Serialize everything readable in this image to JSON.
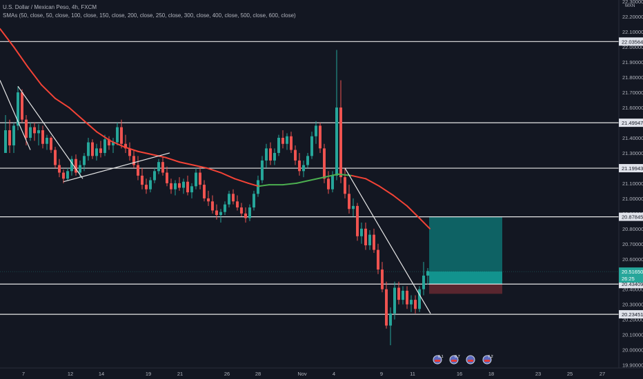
{
  "header": {
    "symbol_line": "U.S. Dollar / Mexican Peso, 4h, FXCM",
    "study_line": "SMAs (50, close, 50, close, 100, close, 150, close, 200, close, 250, close, 300, close, 400, close, 500, close, 600, close)"
  },
  "price_axis": {
    "currency": "MXN",
    "ticks": [
      "22.30000",
      "22.20000",
      "22.10000",
      "22.00000",
      "21.90000",
      "21.80000",
      "21.70000",
      "21.60000",
      "21.50000",
      "21.40000",
      "21.30000",
      "21.20000",
      "21.10000",
      "21.00000",
      "20.90000",
      "20.80000",
      "20.70000",
      "20.60000",
      "20.50000",
      "20.40000",
      "20.30000",
      "20.20000",
      "20.10000",
      "20.00000",
      "19.90000"
    ],
    "current_price": "20.51650",
    "countdown": "26:25"
  },
  "colors": {
    "background": "#131722",
    "up": "#26a69a",
    "down": "#ef5350",
    "sma_above": "#f44336",
    "sma_below": "#4caf50",
    "target_zone": "#0e7c7b",
    "stop_zone": "#6b2a33"
  },
  "chart_data": {
    "type": "candlestick",
    "symbol": "U.S. Dollar / Mexican Peso",
    "timeframe": "4h",
    "source": "FXCM",
    "x_ticks": [
      "7",
      "12",
      "14",
      "19",
      "21",
      "26",
      "28",
      "Nov",
      "4",
      "9",
      "11",
      "16",
      "18",
      "23",
      "25",
      "27"
    ],
    "ylim": [
      19.88,
      22.31
    ],
    "horizontal_levels": [
      {
        "value": 22.03564,
        "label": "22.03564"
      },
      {
        "value": 21.49947,
        "label": "21.49947"
      },
      {
        "value": 21.19943,
        "label": "21.19943"
      },
      {
        "value": 20.87845,
        "label": "20.87845"
      },
      {
        "value": 20.43409,
        "label": "20.43409"
      },
      {
        "value": 20.23451,
        "label": "20.23451"
      }
    ],
    "current_price": 20.5165,
    "long_position": {
      "target": 20.87845,
      "entry": 20.43409,
      "stop": 20.37
    },
    "sma_50": [
      [
        0,
        22.12
      ],
      [
        20,
        22.0
      ],
      [
        40,
        21.87
      ],
      [
        60,
        21.75
      ],
      [
        80,
        21.66
      ],
      [
        100,
        21.6
      ],
      [
        120,
        21.52
      ],
      [
        140,
        21.44
      ],
      [
        160,
        21.38
      ],
      [
        180,
        21.34
      ],
      [
        200,
        21.31
      ],
      [
        220,
        21.29
      ],
      [
        240,
        21.27
      ],
      [
        260,
        21.24
      ],
      [
        280,
        21.22
      ],
      [
        300,
        21.2
      ],
      [
        320,
        21.17
      ],
      [
        340,
        21.13
      ],
      [
        360,
        21.1
      ],
      [
        375,
        21.08
      ],
      [
        390,
        21.09
      ],
      [
        410,
        21.09
      ],
      [
        430,
        21.1
      ],
      [
        450,
        21.12
      ],
      [
        470,
        21.14
      ],
      [
        490,
        21.16
      ],
      [
        510,
        21.15
      ],
      [
        530,
        21.13
      ],
      [
        550,
        21.08
      ],
      [
        570,
        21.02
      ],
      [
        590,
        20.95
      ],
      [
        610,
        20.86
      ],
      [
        623,
        20.8
      ]
    ],
    "candles": [
      {
        "x": 8,
        "o": 21.3,
        "h": 21.55,
        "l": 21.3,
        "c": 21.45
      },
      {
        "x": 14,
        "o": 21.45,
        "h": 21.52,
        "l": 21.3,
        "c": 21.35
      },
      {
        "x": 20,
        "o": 21.35,
        "h": 21.5,
        "l": 21.3,
        "c": 21.48
      },
      {
        "x": 26,
        "o": 21.48,
        "h": 21.74,
        "l": 21.45,
        "c": 21.7
      },
      {
        "x": 32,
        "o": 21.7,
        "h": 21.72,
        "l": 21.5,
        "c": 21.52
      },
      {
        "x": 38,
        "o": 21.52,
        "h": 21.55,
        "l": 21.35,
        "c": 21.4
      },
      {
        "x": 44,
        "o": 21.4,
        "h": 21.5,
        "l": 21.38,
        "c": 21.47
      },
      {
        "x": 50,
        "o": 21.47,
        "h": 21.5,
        "l": 21.38,
        "c": 21.43
      },
      {
        "x": 56,
        "o": 21.43,
        "h": 21.49,
        "l": 21.35,
        "c": 21.45
      },
      {
        "x": 62,
        "o": 21.45,
        "h": 21.48,
        "l": 21.33,
        "c": 21.36
      },
      {
        "x": 68,
        "o": 21.36,
        "h": 21.42,
        "l": 21.32,
        "c": 21.4
      },
      {
        "x": 74,
        "o": 21.4,
        "h": 21.41,
        "l": 21.3,
        "c": 21.32
      },
      {
        "x": 80,
        "o": 21.32,
        "h": 21.34,
        "l": 21.2,
        "c": 21.22
      },
      {
        "x": 86,
        "o": 21.22,
        "h": 21.26,
        "l": 21.14,
        "c": 21.17
      },
      {
        "x": 92,
        "o": 21.17,
        "h": 21.19,
        "l": 21.1,
        "c": 21.13
      },
      {
        "x": 98,
        "o": 21.13,
        "h": 21.2,
        "l": 21.12,
        "c": 21.18
      },
      {
        "x": 104,
        "o": 21.18,
        "h": 21.28,
        "l": 21.15,
        "c": 21.26
      },
      {
        "x": 110,
        "o": 21.26,
        "h": 21.29,
        "l": 21.15,
        "c": 21.17
      },
      {
        "x": 116,
        "o": 21.17,
        "h": 21.25,
        "l": 21.14,
        "c": 21.22
      },
      {
        "x": 122,
        "o": 21.22,
        "h": 21.3,
        "l": 21.18,
        "c": 21.28
      },
      {
        "x": 128,
        "o": 21.28,
        "h": 21.4,
        "l": 21.25,
        "c": 21.37
      },
      {
        "x": 134,
        "o": 21.37,
        "h": 21.39,
        "l": 21.26,
        "c": 21.28
      },
      {
        "x": 140,
        "o": 21.28,
        "h": 21.36,
        "l": 21.25,
        "c": 21.33
      },
      {
        "x": 146,
        "o": 21.33,
        "h": 21.38,
        "l": 21.27,
        "c": 21.3
      },
      {
        "x": 152,
        "o": 21.3,
        "h": 21.42,
        "l": 21.28,
        "c": 21.39
      },
      {
        "x": 158,
        "o": 21.39,
        "h": 21.41,
        "l": 21.32,
        "c": 21.35
      },
      {
        "x": 164,
        "o": 21.35,
        "h": 21.4,
        "l": 21.3,
        "c": 21.37
      },
      {
        "x": 170,
        "o": 21.37,
        "h": 21.5,
        "l": 21.35,
        "c": 21.47
      },
      {
        "x": 176,
        "o": 21.47,
        "h": 21.52,
        "l": 21.33,
        "c": 21.36
      },
      {
        "x": 182,
        "o": 21.36,
        "h": 21.42,
        "l": 21.3,
        "c": 21.33
      },
      {
        "x": 188,
        "o": 21.33,
        "h": 21.37,
        "l": 21.25,
        "c": 21.28
      },
      {
        "x": 194,
        "o": 21.28,
        "h": 21.32,
        "l": 21.2,
        "c": 21.22
      },
      {
        "x": 200,
        "o": 21.22,
        "h": 21.28,
        "l": 21.12,
        "c": 21.15
      },
      {
        "x": 206,
        "o": 21.15,
        "h": 21.2,
        "l": 21.06,
        "c": 21.09
      },
      {
        "x": 212,
        "o": 21.09,
        "h": 21.13,
        "l": 21.03,
        "c": 21.06
      },
      {
        "x": 218,
        "o": 21.06,
        "h": 21.14,
        "l": 21.04,
        "c": 21.12
      },
      {
        "x": 224,
        "o": 21.12,
        "h": 21.2,
        "l": 21.1,
        "c": 21.18
      },
      {
        "x": 230,
        "o": 21.18,
        "h": 21.26,
        "l": 21.16,
        "c": 21.24
      },
      {
        "x": 236,
        "o": 21.24,
        "h": 21.27,
        "l": 21.15,
        "c": 21.17
      },
      {
        "x": 242,
        "o": 21.17,
        "h": 21.21,
        "l": 21.08,
        "c": 21.1
      },
      {
        "x": 248,
        "o": 21.1,
        "h": 21.13,
        "l": 21.03,
        "c": 21.06
      },
      {
        "x": 254,
        "o": 21.06,
        "h": 21.12,
        "l": 21.02,
        "c": 21.1
      },
      {
        "x": 260,
        "o": 21.1,
        "h": 21.14,
        "l": 21.05,
        "c": 21.07
      },
      {
        "x": 266,
        "o": 21.07,
        "h": 21.13,
        "l": 21.03,
        "c": 21.11
      },
      {
        "x": 272,
        "o": 21.11,
        "h": 21.15,
        "l": 21.02,
        "c": 21.04
      },
      {
        "x": 278,
        "o": 21.04,
        "h": 21.1,
        "l": 21.0,
        "c": 21.08
      },
      {
        "x": 284,
        "o": 21.08,
        "h": 21.2,
        "l": 21.06,
        "c": 21.17
      },
      {
        "x": 290,
        "o": 21.17,
        "h": 21.21,
        "l": 21.06,
        "c": 21.09
      },
      {
        "x": 296,
        "o": 21.09,
        "h": 21.12,
        "l": 20.98,
        "c": 21.0
      },
      {
        "x": 302,
        "o": 21.0,
        "h": 21.05,
        "l": 20.95,
        "c": 20.98
      },
      {
        "x": 308,
        "o": 20.98,
        "h": 21.02,
        "l": 20.9,
        "c": 20.92
      },
      {
        "x": 314,
        "o": 20.92,
        "h": 20.96,
        "l": 20.86,
        "c": 20.89
      },
      {
        "x": 320,
        "o": 20.89,
        "h": 20.93,
        "l": 20.84,
        "c": 20.91
      },
      {
        "x": 326,
        "o": 20.91,
        "h": 20.98,
        "l": 20.89,
        "c": 20.96
      },
      {
        "x": 332,
        "o": 20.96,
        "h": 21.05,
        "l": 20.94,
        "c": 21.03
      },
      {
        "x": 338,
        "o": 21.03,
        "h": 21.06,
        "l": 20.96,
        "c": 20.98
      },
      {
        "x": 344,
        "o": 20.98,
        "h": 21.02,
        "l": 20.92,
        "c": 20.94
      },
      {
        "x": 350,
        "o": 20.94,
        "h": 20.97,
        "l": 20.88,
        "c": 20.9
      },
      {
        "x": 356,
        "o": 20.9,
        "h": 20.94,
        "l": 20.84,
        "c": 20.87
      },
      {
        "x": 362,
        "o": 20.87,
        "h": 20.96,
        "l": 20.85,
        "c": 20.94
      },
      {
        "x": 368,
        "o": 20.94,
        "h": 21.05,
        "l": 20.92,
        "c": 21.03
      },
      {
        "x": 374,
        "o": 21.03,
        "h": 21.15,
        "l": 21.01,
        "c": 21.12
      },
      {
        "x": 380,
        "o": 21.12,
        "h": 21.28,
        "l": 21.1,
        "c": 21.25
      },
      {
        "x": 386,
        "o": 21.25,
        "h": 21.36,
        "l": 21.2,
        "c": 21.33
      },
      {
        "x": 392,
        "o": 21.33,
        "h": 21.37,
        "l": 21.22,
        "c": 21.25
      },
      {
        "x": 398,
        "o": 21.25,
        "h": 21.33,
        "l": 21.22,
        "c": 21.3
      },
      {
        "x": 404,
        "o": 21.3,
        "h": 21.42,
        "l": 21.28,
        "c": 21.4
      },
      {
        "x": 410,
        "o": 21.4,
        "h": 21.45,
        "l": 21.33,
        "c": 21.36
      },
      {
        "x": 416,
        "o": 21.36,
        "h": 21.43,
        "l": 21.32,
        "c": 21.41
      },
      {
        "x": 422,
        "o": 21.41,
        "h": 21.44,
        "l": 21.3,
        "c": 21.32
      },
      {
        "x": 428,
        "o": 21.32,
        "h": 21.35,
        "l": 21.22,
        "c": 21.25
      },
      {
        "x": 434,
        "o": 21.25,
        "h": 21.3,
        "l": 21.15,
        "c": 21.18
      },
      {
        "x": 440,
        "o": 21.18,
        "h": 21.25,
        "l": 21.14,
        "c": 21.22
      },
      {
        "x": 446,
        "o": 21.22,
        "h": 21.3,
        "l": 21.2,
        "c": 21.28
      },
      {
        "x": 452,
        "o": 21.28,
        "h": 21.44,
        "l": 21.26,
        "c": 21.41
      },
      {
        "x": 458,
        "o": 21.41,
        "h": 21.51,
        "l": 21.36,
        "c": 21.48
      },
      {
        "x": 464,
        "o": 21.48,
        "h": 21.5,
        "l": 21.3,
        "c": 21.33
      },
      {
        "x": 470,
        "o": 21.33,
        "h": 21.36,
        "l": 21.1,
        "c": 21.13
      },
      {
        "x": 476,
        "o": 21.13,
        "h": 21.18,
        "l": 21.03,
        "c": 21.06
      },
      {
        "x": 482,
        "o": 21.06,
        "h": 21.18,
        "l": 21.04,
        "c": 21.15
      },
      {
        "x": 488,
        "o": 21.15,
        "h": 21.98,
        "l": 21.12,
        "c": 21.6
      },
      {
        "x": 494,
        "o": 21.6,
        "h": 21.78,
        "l": 21.1,
        "c": 21.14
      },
      {
        "x": 500,
        "o": 21.14,
        "h": 21.2,
        "l": 21.0,
        "c": 21.03
      },
      {
        "x": 506,
        "o": 21.03,
        "h": 21.09,
        "l": 20.9,
        "c": 20.93
      },
      {
        "x": 512,
        "o": 20.93,
        "h": 21.0,
        "l": 20.88,
        "c": 20.95
      },
      {
        "x": 518,
        "o": 20.95,
        "h": 20.97,
        "l": 20.72,
        "c": 20.75
      },
      {
        "x": 524,
        "o": 20.75,
        "h": 20.84,
        "l": 20.7,
        "c": 20.8
      },
      {
        "x": 530,
        "o": 20.8,
        "h": 20.84,
        "l": 20.66,
        "c": 20.69
      },
      {
        "x": 536,
        "o": 20.69,
        "h": 20.79,
        "l": 20.66,
        "c": 20.76
      },
      {
        "x": 542,
        "o": 20.76,
        "h": 20.8,
        "l": 20.64,
        "c": 20.66
      },
      {
        "x": 548,
        "o": 20.66,
        "h": 20.7,
        "l": 20.5,
        "c": 20.53
      },
      {
        "x": 554,
        "o": 20.53,
        "h": 20.58,
        "l": 20.38,
        "c": 20.4
      },
      {
        "x": 560,
        "o": 20.4,
        "h": 20.45,
        "l": 20.14,
        "c": 20.16
      },
      {
        "x": 566,
        "o": 20.16,
        "h": 20.28,
        "l": 20.03,
        "c": 20.24
      },
      {
        "x": 572,
        "o": 20.24,
        "h": 20.45,
        "l": 20.2,
        "c": 20.41
      },
      {
        "x": 578,
        "o": 20.41,
        "h": 20.45,
        "l": 20.3,
        "c": 20.33
      },
      {
        "x": 584,
        "o": 20.33,
        "h": 20.42,
        "l": 20.3,
        "c": 20.39
      },
      {
        "x": 590,
        "o": 20.39,
        "h": 20.42,
        "l": 20.27,
        "c": 20.3
      },
      {
        "x": 596,
        "o": 20.3,
        "h": 20.36,
        "l": 20.25,
        "c": 20.33
      },
      {
        "x": 602,
        "o": 20.33,
        "h": 20.36,
        "l": 20.24,
        "c": 20.27
      },
      {
        "x": 608,
        "o": 20.27,
        "h": 20.42,
        "l": 20.25,
        "c": 20.4
      },
      {
        "x": 614,
        "o": 20.4,
        "h": 20.58,
        "l": 20.36,
        "c": 20.49
      },
      {
        "x": 620,
        "o": 20.49,
        "h": 20.54,
        "l": 20.43,
        "c": 20.52
      }
    ],
    "trendlines": [
      {
        "from": [
          0,
          21.78
        ],
        "to": [
          44,
          21.32
        ]
      },
      {
        "from": [
          26,
          21.74
        ],
        "to": [
          120,
          21.13
        ]
      },
      {
        "from": [
          92,
          21.11
        ],
        "to": [
          246,
          21.3
        ]
      },
      {
        "from": [
          500,
          21.2
        ],
        "to": [
          624,
          20.24
        ]
      }
    ],
    "events": [
      {
        "x": 634,
        "label": "0.1"
      },
      {
        "x": 658,
        "label": "0.7"
      },
      {
        "x": 682,
        "label": ""
      },
      {
        "x": 706,
        "label": "7.2"
      }
    ]
  }
}
